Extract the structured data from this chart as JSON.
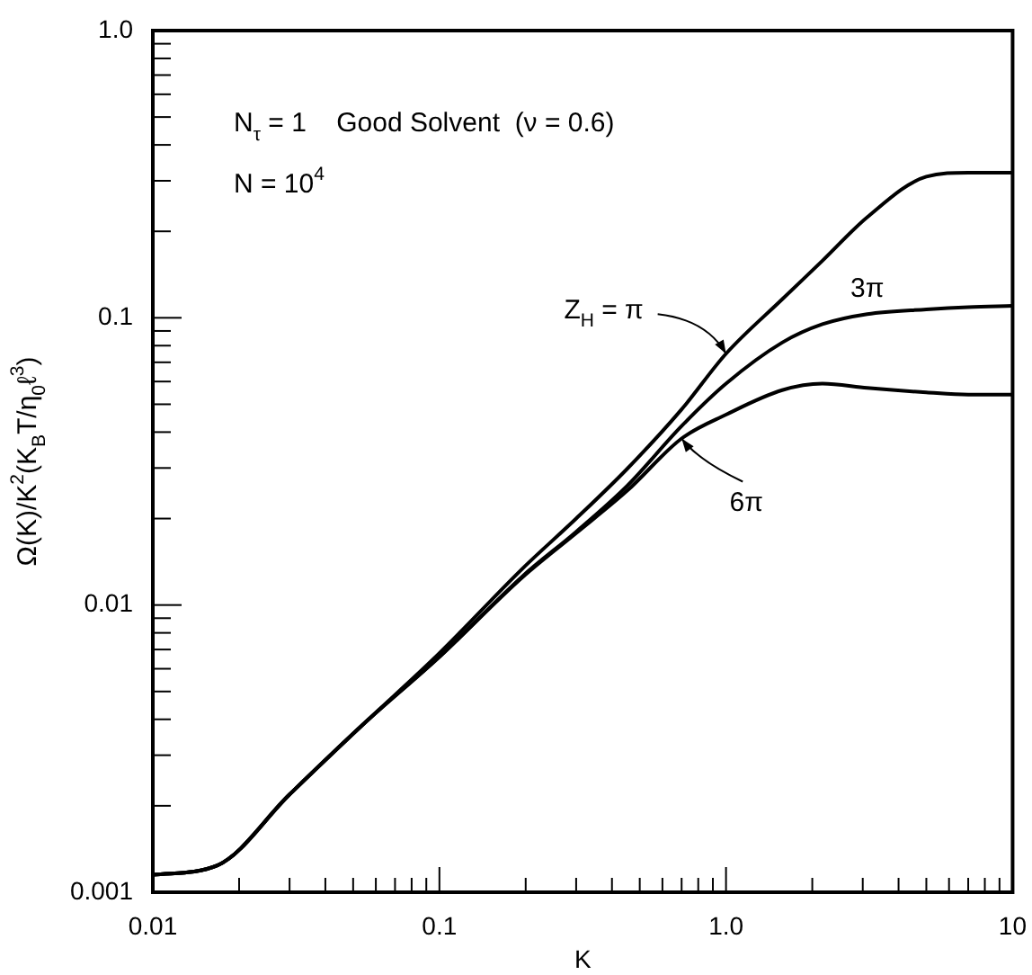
{
  "chart_data": {
    "type": "line",
    "xlabel": "K",
    "ylabel": "Ω(K)/K$^{2}$(K$_{B}$T/η$_{0}$ℓ$^{3}$)",
    "log": "xy",
    "grid": false,
    "marker": "none",
    "line_style": "solid",
    "annotations": [
      "N$_{τ}$ = 1    Good Solvent  (ν = 0.6)",
      "N = 10$^{4}$"
    ],
    "x": [
      0.01,
      0.0168,
      0.03,
      0.0557,
      0.1,
      0.195,
      0.3,
      0.452,
      0.7,
      1,
      1.57,
      2.17,
      3.11,
      5,
      7,
      10
    ],
    "series": [
      {
        "name": "Z$_{H}$ = π",
        "color": "#000000",
        "values": [
          0.00115,
          0.00124,
          0.00219,
          0.00394,
          0.0068,
          0.0134,
          0.02,
          0.0298,
          0.048,
          0.075,
          0.116,
          0.158,
          0.224,
          0.31,
          0.32,
          0.32
        ]
      },
      {
        "name": "3π",
        "color": "#000000",
        "values": [
          0.00115,
          0.00124,
          0.00219,
          0.00394,
          0.0066,
          0.0126,
          0.018,
          0.026,
          0.042,
          0.059,
          0.082,
          0.095,
          0.103,
          0.107,
          0.109,
          0.11
        ]
      },
      {
        "name": "6π",
        "color": "#000000",
        "values": [
          0.00115,
          0.00124,
          0.00219,
          0.00394,
          0.0066,
          0.0125,
          0.0178,
          0.025,
          0.038,
          0.046,
          0.056,
          0.059,
          0.057,
          0.055,
          0.054,
          0.054
        ]
      }
    ],
    "xlim": [
      0.01,
      10
    ],
    "ylim": [
      0.001,
      1
    ],
    "xticks": [
      0.01,
      {
        "value": 0.02,
        "label": null
      },
      {
        "value": 0.03,
        "label": null
      },
      {
        "value": 0.04,
        "label": null
      },
      {
        "value": 0.05,
        "label": null
      },
      {
        "value": 0.06,
        "label": null
      },
      {
        "value": 0.07,
        "label": null
      },
      {
        "value": 0.08,
        "label": null
      },
      {
        "value": 0.09,
        "label": null
      },
      0.1,
      {
        "value": 0.2,
        "label": null
      },
      {
        "value": 0.3,
        "label": null
      },
      {
        "value": 0.4,
        "label": null
      },
      {
        "value": 0.5,
        "label": null
      },
      {
        "value": 0.6,
        "label": null
      },
      {
        "value": 0.7,
        "label": null
      },
      {
        "value": 0.8,
        "label": null
      },
      {
        "value": 0.9,
        "label": null
      },
      {
        "value": 1,
        "label": "1.0"
      },
      {
        "value": 2,
        "label": null
      },
      {
        "value": 3,
        "label": null
      },
      {
        "value": 4,
        "label": null
      },
      {
        "value": 5,
        "label": null
      },
      {
        "value": 6,
        "label": null
      },
      {
        "value": 7,
        "label": null
      },
      {
        "value": 8,
        "label": null
      },
      {
        "value": 9,
        "label": null
      },
      10
    ],
    "yticks": [
      0.001,
      {
        "value": 0.002,
        "label": null
      },
      {
        "value": 0.003,
        "label": null
      },
      {
        "value": 0.004,
        "label": null
      },
      {
        "value": 0.005,
        "label": null
      },
      {
        "value": 0.006,
        "label": null
      },
      {
        "value": 0.007,
        "label": null
      },
      {
        "value": 0.008,
        "label": null
      },
      {
        "value": 0.009,
        "label": null
      },
      0.01,
      {
        "value": 0.02,
        "label": null
      },
      {
        "value": 0.03,
        "label": null
      },
      {
        "value": 0.04,
        "label": null
      },
      {
        "value": 0.05,
        "label": null
      },
      {
        "value": 0.06,
        "label": null
      },
      {
        "value": 0.07,
        "label": null
      },
      {
        "value": 0.08,
        "label": null
      },
      {
        "value": 0.09,
        "label": null
      },
      0.1,
      {
        "value": 0.2,
        "label": null
      },
      {
        "value": 0.3,
        "label": null
      },
      {
        "value": 0.4,
        "label": null
      },
      {
        "value": 0.5,
        "label": null
      },
      {
        "value": 0.6,
        "label": null
      },
      {
        "value": 0.7,
        "label": null
      },
      {
        "value": 0.8,
        "label": null
      },
      {
        "value": 0.9,
        "label": null
      },
      {
        "value": 1,
        "label": "1.0"
      }
    ]
  }
}
